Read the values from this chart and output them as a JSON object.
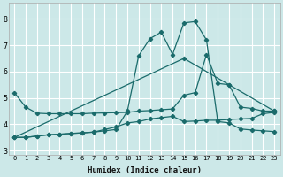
{
  "background_color": "#cce8e8",
  "grid_color": "#ffffff",
  "line_color": "#1a6b6b",
  "xlabel": "Humidex (Indice chaleur)",
  "xlim": [
    -0.5,
    23.5
  ],
  "ylim": [
    2.85,
    8.6
  ],
  "yticks": [
    3,
    4,
    5,
    6,
    7,
    8
  ],
  "xticks": [
    0,
    1,
    2,
    3,
    4,
    5,
    6,
    7,
    8,
    9,
    10,
    11,
    12,
    13,
    14,
    15,
    16,
    17,
    18,
    19,
    20,
    21,
    22,
    23
  ],
  "series": [
    {
      "x": [
        0,
        1,
        2,
        3,
        4,
        5,
        6,
        7,
        8,
        9,
        10,
        11,
        12,
        13,
        14,
        15,
        16,
        17,
        18,
        19,
        20,
        21,
        22,
        23
      ],
      "y": [
        3.5,
        3.5,
        3.55,
        3.6,
        3.62,
        3.65,
        3.67,
        3.7,
        3.75,
        3.8,
        4.5,
        6.6,
        7.25,
        7.5,
        6.65,
        7.85,
        7.9,
        7.2,
        4.1,
        4.05,
        3.82,
        3.78,
        3.75,
        3.72
      ]
    },
    {
      "x": [
        0,
        1,
        2,
        3,
        4,
        5,
        6,
        7,
        8,
        9,
        10,
        11,
        12,
        13,
        14,
        15,
        16,
        17,
        18,
        19,
        20,
        21,
        22,
        23
      ],
      "y": [
        5.2,
        4.65,
        4.42,
        4.4,
        4.4,
        4.4,
        4.4,
        4.42,
        4.43,
        4.44,
        4.45,
        4.5,
        4.52,
        4.55,
        4.58,
        5.1,
        5.2,
        6.65,
        5.55,
        5.5,
        4.65,
        4.6,
        4.5,
        4.5
      ]
    },
    {
      "x": [
        0,
        1,
        2,
        3,
        4,
        5,
        6,
        7,
        8,
        9,
        10,
        11,
        12,
        13,
        14,
        15,
        16,
        17,
        18,
        19,
        20,
        21,
        22,
        23
      ],
      "y": [
        3.5,
        3.5,
        3.55,
        3.6,
        3.62,
        3.65,
        3.67,
        3.7,
        3.8,
        3.9,
        4.05,
        4.1,
        4.2,
        4.25,
        4.3,
        4.1,
        4.12,
        4.15,
        4.15,
        4.18,
        4.2,
        4.22,
        4.4,
        4.45
      ]
    },
    {
      "x": [
        0,
        15,
        19,
        23
      ],
      "y": [
        3.5,
        6.5,
        5.5,
        4.5
      ]
    }
  ]
}
